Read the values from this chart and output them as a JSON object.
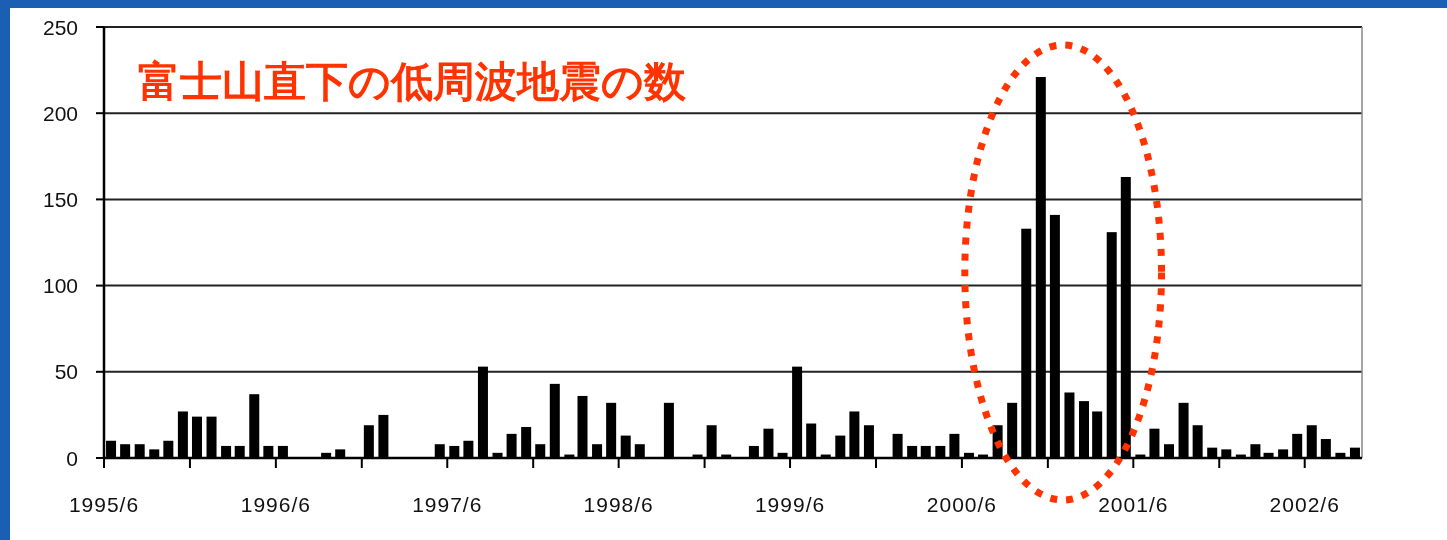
{
  "chart_data": {
    "type": "bar",
    "title": "富士山直下の低周波地震の数",
    "x": [
      "1995-06-16",
      "1995-07-16",
      "1995-08-16",
      "1995-09-16",
      "1995-10-16",
      "1995-11-16",
      "1995-12-16",
      "1996-01-16",
      "1996-02-16",
      "1996-03-16",
      "1996-04-16",
      "1996-05-16",
      "1996-06-16",
      "1996-07-16",
      "1996-08-16",
      "1996-09-16",
      "1996-10-16",
      "1996-11-16",
      "1996-12-16",
      "1997-01-16",
      "1997-02-16",
      "1997-03-16",
      "1997-04-16",
      "1997-05-16",
      "1997-06-16",
      "1997-07-16",
      "1997-08-16",
      "1997-09-16",
      "1997-10-16",
      "1997-11-16",
      "1997-12-16",
      "1998-01-16",
      "1998-02-16",
      "1998-03-16",
      "1998-04-16",
      "1998-05-16",
      "1998-06-16",
      "1998-07-16",
      "1998-08-16",
      "1998-09-16",
      "1998-10-16",
      "1998-11-16",
      "1998-12-16",
      "1999-01-16",
      "1999-02-16",
      "1999-03-16",
      "1999-04-16",
      "1999-05-16",
      "1999-06-16",
      "1999-07-16",
      "1999-08-16",
      "1999-09-16",
      "1999-10-16",
      "1999-11-16",
      "1999-12-16",
      "2000-01-16",
      "2000-02-16",
      "2000-03-16",
      "2000-04-16",
      "2000-05-16",
      "2000-06-16",
      "2000-07-16",
      "2000-08-16",
      "2000-09-16",
      "2000-10-16",
      "2000-11-16",
      "2000-12-16",
      "2001-01-16",
      "2001-02-16",
      "2001-03-16",
      "2001-04-16",
      "2001-05-16",
      "2001-06-16",
      "2001-07-16",
      "2001-08-16",
      "2001-09-16",
      "2001-10-16",
      "2001-11-16",
      "2001-12-16",
      "2002-01-16",
      "2002-02-16",
      "2002-03-16",
      "2002-04-16",
      "2002-05-16",
      "2002-06-16",
      "2002-07-16",
      "2002-08-16",
      "2002-09-16"
    ],
    "values": [
      10,
      8,
      8,
      5,
      10,
      27,
      24,
      24,
      7,
      7,
      37,
      7,
      7,
      0,
      0,
      3,
      5,
      0,
      19,
      25,
      0,
      0,
      0,
      8,
      7,
      10,
      53,
      3,
      14,
      18,
      8,
      43,
      2,
      36,
      8,
      32,
      13,
      8,
      0,
      32,
      0,
      2,
      19,
      2,
      0,
      7,
      17,
      3,
      53,
      20,
      2,
      13,
      27,
      19,
      0,
      14,
      7,
      7,
      7,
      14,
      3,
      2,
      19,
      32,
      133,
      221,
      141,
      38,
      33,
      27,
      131,
      163,
      2,
      17,
      8,
      32,
      19,
      6,
      5,
      2,
      8,
      3,
      5,
      14,
      19,
      11,
      3,
      6
    ],
    "color": "#000000",
    "xlim": [
      "1995-06",
      "2002-10"
    ],
    "xticks": [
      {
        "value": "1995-06",
        "label": "1995/6"
      },
      {
        "value": "1995-12",
        "label": null
      },
      {
        "value": "1996-06",
        "label": "1996/6"
      },
      {
        "value": "1996-12",
        "label": null
      },
      {
        "value": "1997-06",
        "label": "1997/6"
      },
      {
        "value": "1997-12",
        "label": null
      },
      {
        "value": "1998-06",
        "label": "1998/6"
      },
      {
        "value": "1998-12",
        "label": null
      },
      {
        "value": "1999-06",
        "label": "1999/6"
      },
      {
        "value": "1999-12",
        "label": null
      },
      {
        "value": "2000-06",
        "label": "2000/6"
      },
      {
        "value": "2000-12",
        "label": null
      },
      {
        "value": "2001-06",
        "label": "2001/6"
      },
      {
        "value": "2001-12",
        "label": null
      },
      {
        "value": "2002-06",
        "label": "2002/6"
      }
    ],
    "ylim": [
      0,
      250
    ],
    "yticks": [
      0,
      50,
      100,
      150,
      200,
      250
    ],
    "grid": "y"
  }
}
